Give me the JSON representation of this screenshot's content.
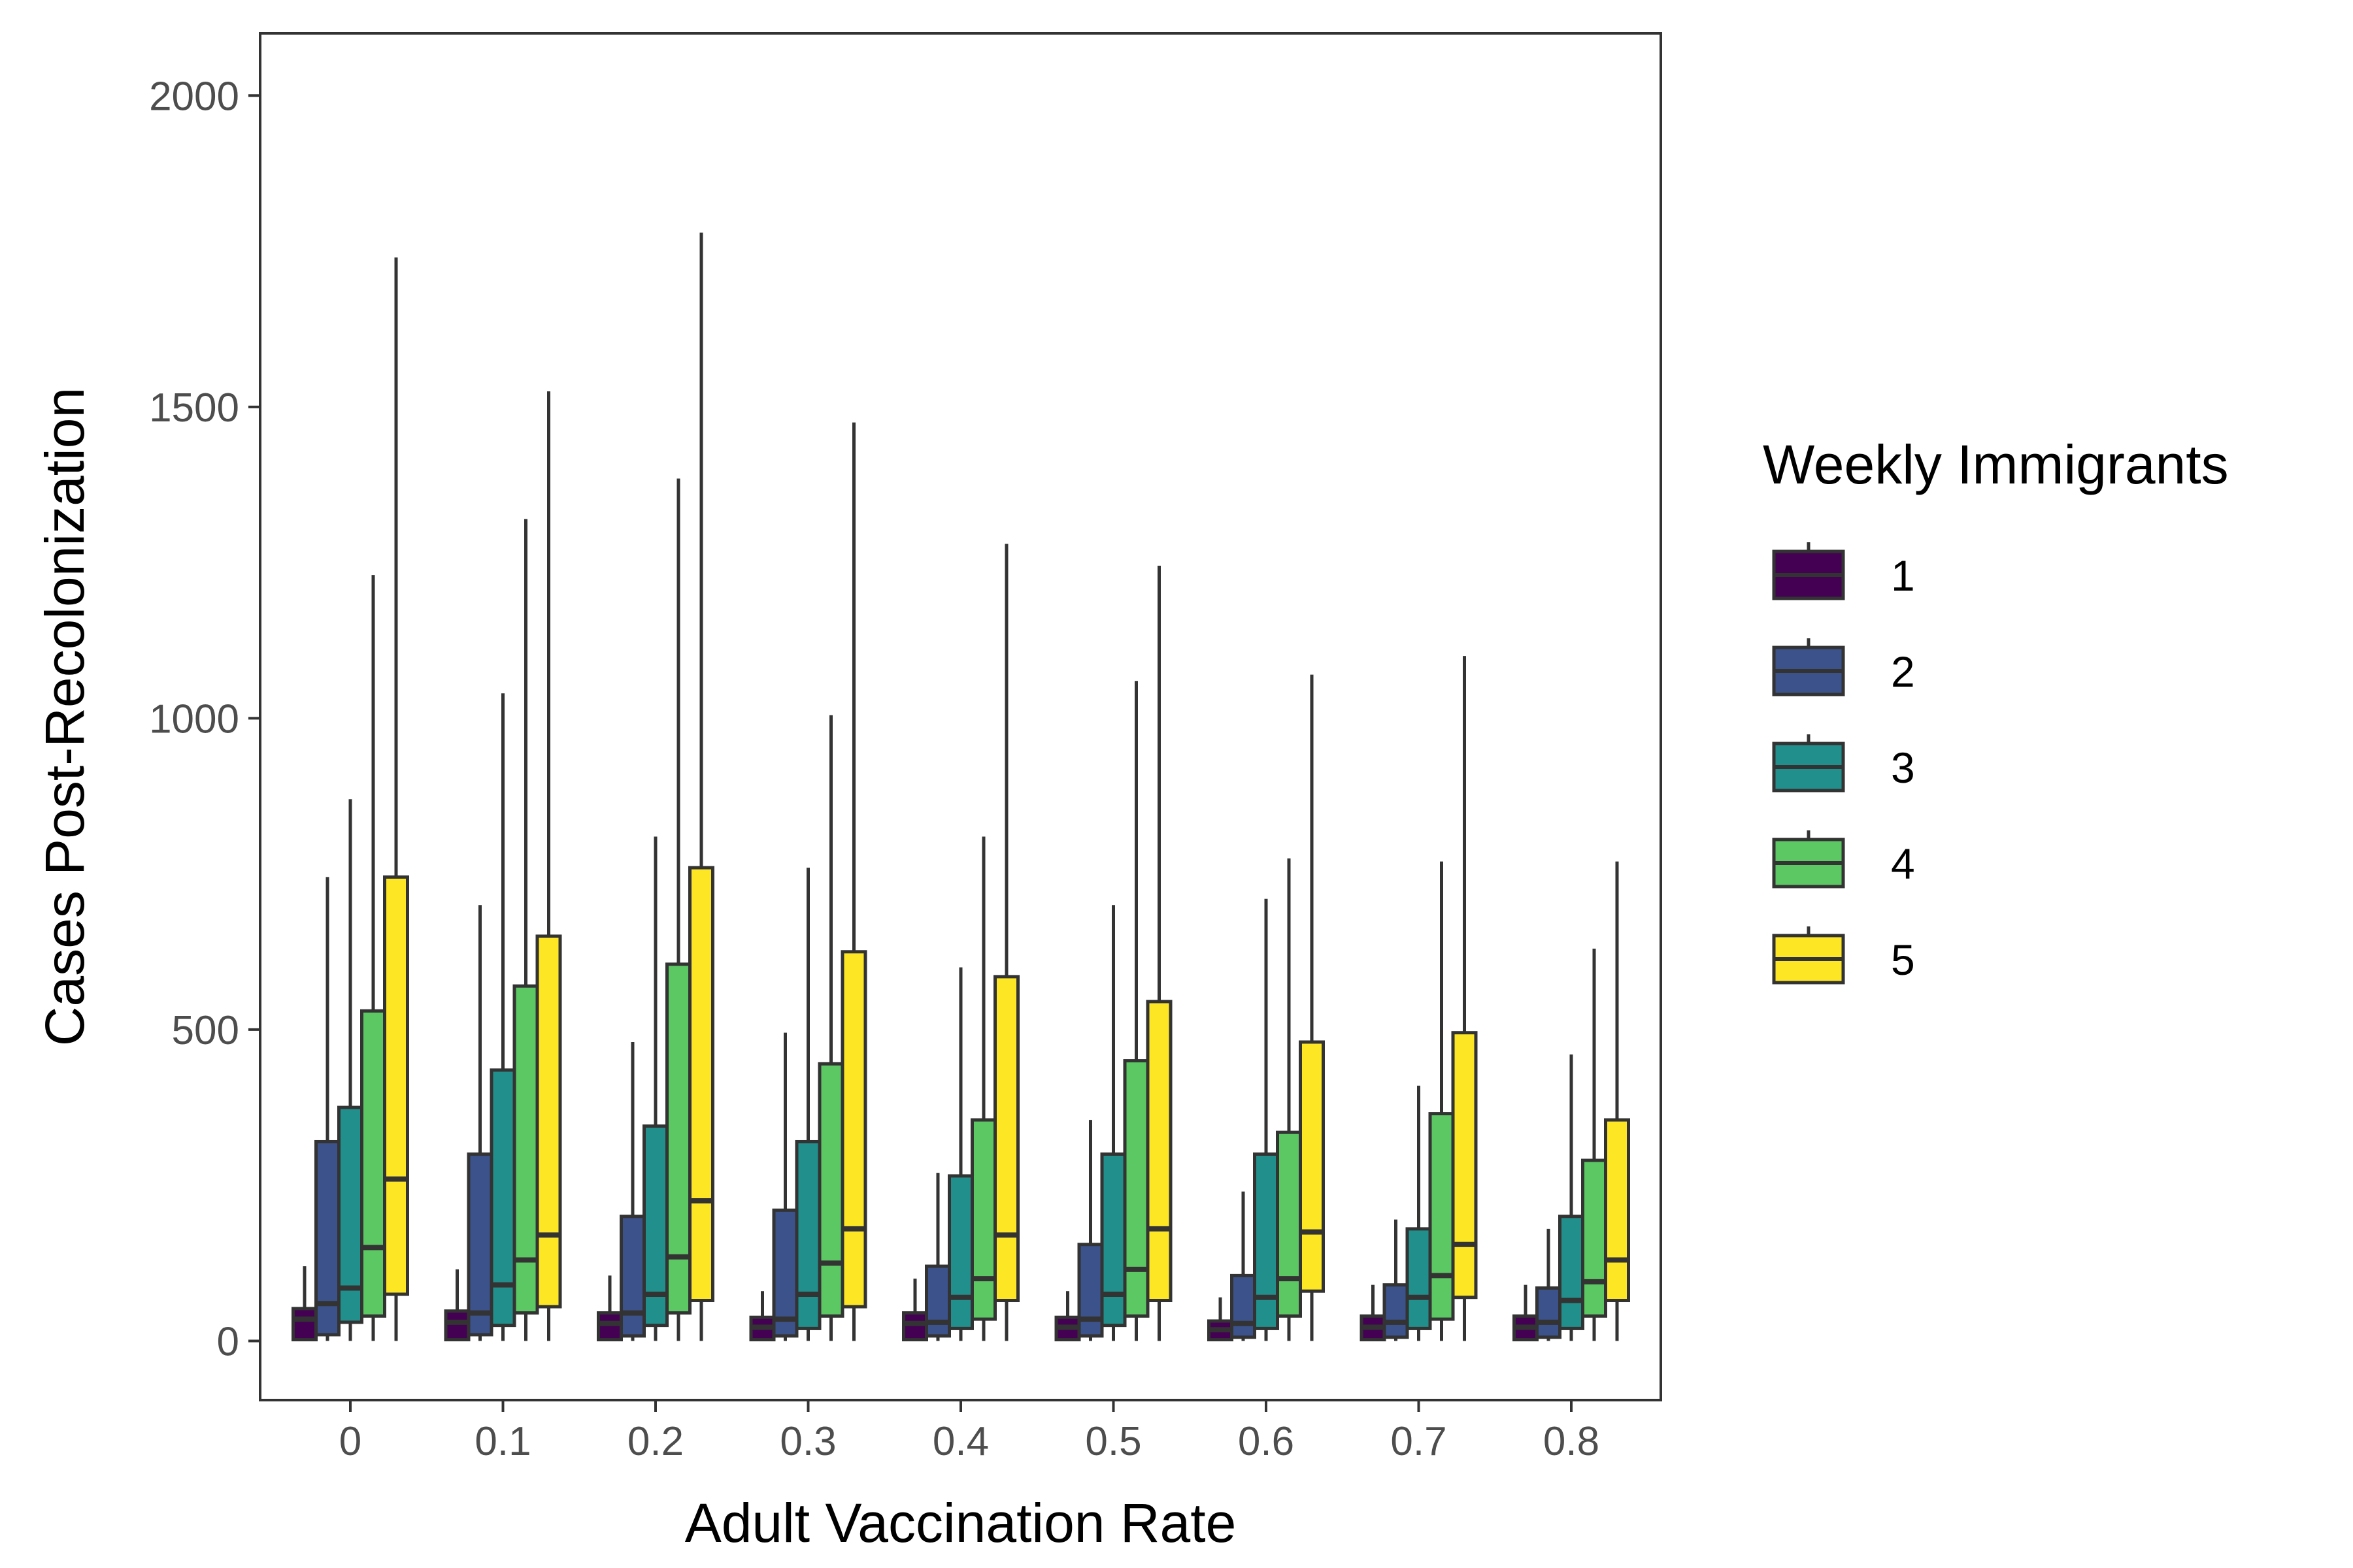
{
  "chart_data": {
    "type": "boxplot",
    "xlabel": "Adult Vaccination Rate",
    "ylabel": "Cases Post-Recolonization",
    "ylim": [
      -95,
      2100
    ],
    "yticks": [
      0,
      500,
      1000,
      1500,
      2000
    ],
    "categories": [
      "0",
      "0.1",
      "0.2",
      "0.3",
      "0.4",
      "0.5",
      "0.6",
      "0.7",
      "0.8"
    ],
    "legend": {
      "title": "Weekly Immigrants",
      "placement": "right"
    },
    "grid": false,
    "series": [
      {
        "name": "1",
        "color": "#440154",
        "boxes": [
          {
            "min": 0,
            "q1": 2,
            "median": 35,
            "q3": 52,
            "max": 120
          },
          {
            "min": 0,
            "q1": 2,
            "median": 30,
            "q3": 48,
            "max": 115
          },
          {
            "min": 0,
            "q1": 2,
            "median": 28,
            "q3": 45,
            "max": 105
          },
          {
            "min": 0,
            "q1": 2,
            "median": 22,
            "q3": 38,
            "max": 80
          },
          {
            "min": 0,
            "q1": 2,
            "median": 28,
            "q3": 45,
            "max": 100
          },
          {
            "min": 0,
            "q1": 2,
            "median": 22,
            "q3": 38,
            "max": 80
          },
          {
            "min": 0,
            "q1": 2,
            "median": 18,
            "q3": 32,
            "max": 70
          },
          {
            "min": 0,
            "q1": 2,
            "median": 22,
            "q3": 40,
            "max": 90
          },
          {
            "min": 0,
            "q1": 2,
            "median": 22,
            "q3": 40,
            "max": 90
          }
        ]
      },
      {
        "name": "2",
        "color": "#3b528b",
        "boxes": [
          {
            "min": 0,
            "q1": 10,
            "median": 60,
            "q3": 320,
            "max": 745
          },
          {
            "min": 0,
            "q1": 10,
            "median": 45,
            "q3": 300,
            "max": 700
          },
          {
            "min": 0,
            "q1": 8,
            "median": 45,
            "q3": 200,
            "max": 480
          },
          {
            "min": 0,
            "q1": 8,
            "median": 35,
            "q3": 210,
            "max": 495
          },
          {
            "min": 0,
            "q1": 8,
            "median": 30,
            "q3": 120,
            "max": 270
          },
          {
            "min": 0,
            "q1": 8,
            "median": 35,
            "q3": 155,
            "max": 355
          },
          {
            "min": 0,
            "q1": 6,
            "median": 28,
            "q3": 105,
            "max": 240
          },
          {
            "min": 0,
            "q1": 6,
            "median": 30,
            "q3": 90,
            "max": 195
          },
          {
            "min": 0,
            "q1": 6,
            "median": 30,
            "q3": 85,
            "max": 180
          }
        ]
      },
      {
        "name": "3",
        "color": "#21908c",
        "boxes": [
          {
            "min": 0,
            "q1": 30,
            "median": 85,
            "q3": 375,
            "max": 870
          },
          {
            "min": 0,
            "q1": 25,
            "median": 90,
            "q3": 435,
            "max": 1040
          },
          {
            "min": 0,
            "q1": 25,
            "median": 75,
            "q3": 345,
            "max": 810
          },
          {
            "min": 0,
            "q1": 20,
            "median": 75,
            "q3": 320,
            "max": 760
          },
          {
            "min": 0,
            "q1": 20,
            "median": 70,
            "q3": 265,
            "max": 600
          },
          {
            "min": 0,
            "q1": 25,
            "median": 75,
            "q3": 300,
            "max": 700
          },
          {
            "min": 0,
            "q1": 20,
            "median": 70,
            "q3": 300,
            "max": 710
          },
          {
            "min": 0,
            "q1": 20,
            "median": 70,
            "q3": 180,
            "max": 410
          },
          {
            "min": 0,
            "q1": 20,
            "median": 65,
            "q3": 200,
            "max": 460
          }
        ]
      },
      {
        "name": "4",
        "color": "#5cc863",
        "boxes": [
          {
            "min": 0,
            "q1": 40,
            "median": 150,
            "q3": 530,
            "max": 1230
          },
          {
            "min": 0,
            "q1": 45,
            "median": 130,
            "q3": 570,
            "max": 1320
          },
          {
            "min": 0,
            "q1": 45,
            "median": 135,
            "q3": 605,
            "max": 1385
          },
          {
            "min": 0,
            "q1": 40,
            "median": 125,
            "q3": 445,
            "max": 1005
          },
          {
            "min": 0,
            "q1": 35,
            "median": 100,
            "q3": 355,
            "max": 810
          },
          {
            "min": 0,
            "q1": 40,
            "median": 115,
            "q3": 450,
            "max": 1060
          },
          {
            "min": 0,
            "q1": 40,
            "median": 100,
            "q3": 335,
            "max": 775
          },
          {
            "min": 0,
            "q1": 35,
            "median": 105,
            "q3": 365,
            "max": 770
          },
          {
            "min": 0,
            "q1": 40,
            "median": 95,
            "q3": 290,
            "max": 630
          }
        ]
      },
      {
        "name": "5",
        "color": "#fde725",
        "boxes": [
          {
            "min": 0,
            "q1": 75,
            "median": 260,
            "q3": 745,
            "max": 1740
          },
          {
            "min": 0,
            "q1": 55,
            "median": 170,
            "q3": 650,
            "max": 1525
          },
          {
            "min": 0,
            "q1": 65,
            "median": 225,
            "q3": 760,
            "max": 1780
          },
          {
            "min": 0,
            "q1": 55,
            "median": 180,
            "q3": 625,
            "max": 1475
          },
          {
            "min": 0,
            "q1": 65,
            "median": 170,
            "q3": 585,
            "max": 1280
          },
          {
            "min": 0,
            "q1": 65,
            "median": 180,
            "q3": 545,
            "max": 1245
          },
          {
            "min": 0,
            "q1": 80,
            "median": 175,
            "q3": 480,
            "max": 1070
          },
          {
            "min": 0,
            "q1": 70,
            "median": 155,
            "q3": 495,
            "max": 1100
          },
          {
            "min": 0,
            "q1": 65,
            "median": 130,
            "q3": 355,
            "max": 770
          }
        ]
      }
    ]
  }
}
